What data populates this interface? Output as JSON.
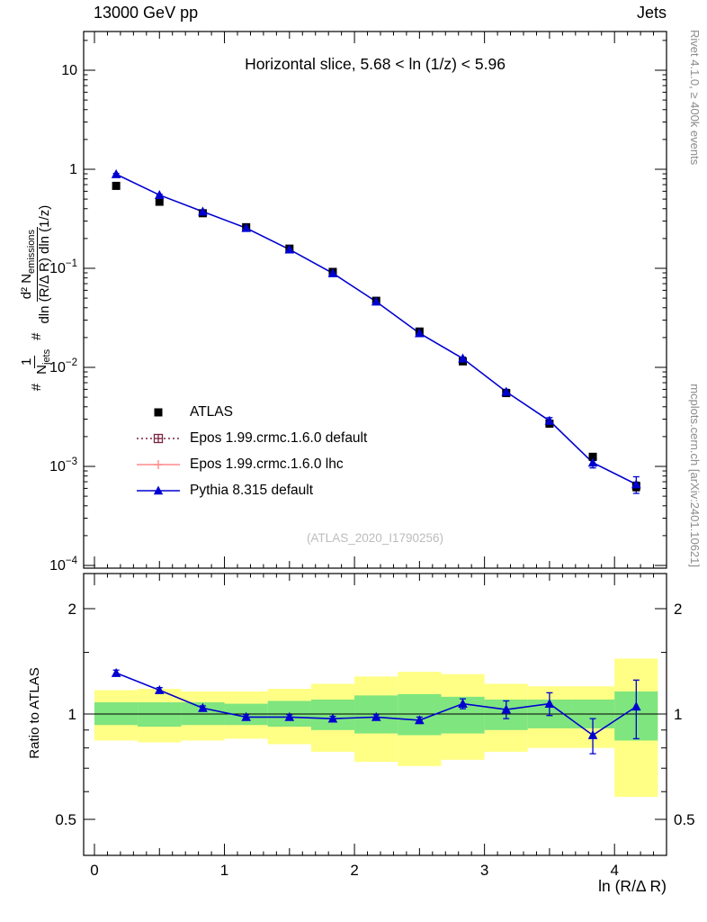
{
  "header": {
    "left": "13000 GeV pp",
    "right": "Jets"
  },
  "panel_title": "Horizontal slice, 5.68 < ln (1/z) < 5.96",
  "watermark": "(ATLAS_2020_I1790256)",
  "side_notes": {
    "top_right": "Rivet 4.1.0, ≥ 400k events",
    "bottom_right": "mcplots.cern.ch [arXiv:2401.10621]"
  },
  "axes": {
    "x_label": "ln (R/Δ R)",
    "ratio_label": "Ratio to ATLAS",
    "y_label_parts": {
      "hash1": "#",
      "f1_num": "1",
      "f1_den_main": "N",
      "f1_den_sub": "jets",
      "hash2": "#",
      "f2_num_main": "d² N",
      "f2_num_sub": "emissions",
      "f2_den": "dln (R/Δ R) dln (1/z)"
    }
  },
  "legend": {
    "items": [
      {
        "label": "ATLAS",
        "marker": "square-filled",
        "color": "#000000",
        "line": "none"
      },
      {
        "label": "Epos 1.99.crmc.1.6.0 default",
        "marker": "square-plus",
        "color": "#7b2440",
        "line": "dotted"
      },
      {
        "label": "Epos 1.99.crmc.1.6.0 lhc",
        "marker": "plus",
        "color": "#ff8a8a",
        "line": "solid"
      },
      {
        "label": "Pythia 8.315 default",
        "marker": "triangle-filled",
        "color": "#0000d0",
        "line": "solid"
      }
    ]
  },
  "chart_data": {
    "type": "line",
    "title": "Horizontal slice, 5.68 < ln (1/z) < 5.96",
    "xlabel": "ln (R/Δ R)",
    "ylabel": "1/N_jets d²N_emissions / dln(R/ΔR) dln(1/z)",
    "ratio_ylabel": "Ratio to ATLAS",
    "xlim": [
      -0.083,
      4.4
    ],
    "ylim_main": [
      0.0001,
      24
    ],
    "ylim_ratio": [
      0.394,
      2.52
    ],
    "x_ticks": [
      0,
      1,
      2,
      3,
      4
    ],
    "y_tick_exponents": [
      1,
      0,
      -1,
      -2,
      -3,
      -4
    ],
    "ratio_ticks": [
      0.5,
      1,
      2
    ],
    "ratio_minor_ticks": [
      0.6,
      0.7,
      0.8,
      0.9,
      1.5
    ],
    "reference_line": 1,
    "x": [
      0.167,
      0.5,
      0.833,
      1.167,
      1.5,
      1.833,
      2.167,
      2.5,
      2.833,
      3.167,
      3.5,
      3.833,
      4.167
    ],
    "series": [
      {
        "name": "ATLAS",
        "marker": "square-filled",
        "color": "#000000",
        "values": [
          0.68,
          0.47,
          0.36,
          0.26,
          0.158,
          0.092,
          0.047,
          0.023,
          0.0115,
          0.0055,
          0.0027,
          0.00125,
          0.00063
        ],
        "yerr_frac": [
          0.03,
          0.03,
          0.03,
          0.03,
          0.03,
          0.03,
          0.03,
          0.03,
          0.035,
          0.04,
          0.05,
          0.08,
          0.1
        ]
      },
      {
        "name": "Pythia 8.315 default",
        "marker": "triangle-filled",
        "color": "#0000d0",
        "values": [
          0.891,
          0.55,
          0.374,
          0.255,
          0.155,
          0.0892,
          0.0461,
          0.0221,
          0.0123,
          0.00567,
          0.00289,
          0.00109,
          0.00066
        ],
        "ratio": [
          1.31,
          1.17,
          1.04,
          0.98,
          0.98,
          0.97,
          0.98,
          0.96,
          1.07,
          1.03,
          1.07,
          0.87,
          1.05
        ],
        "ratio_err": [
          0.025,
          0.02,
          0.015,
          0.015,
          0.015,
          0.015,
          0.015,
          0.02,
          0.035,
          0.06,
          0.08,
          0.1,
          0.2
        ]
      }
    ],
    "legend_only_series": [
      {
        "name": "Epos 1.99.crmc.1.6.0 default",
        "marker": "square-plus",
        "color": "#7b2440",
        "line": "dotted"
      },
      {
        "name": "Epos 1.99.crmc.1.6.0 lhc",
        "marker": "plus",
        "color": "#ff8a8a",
        "line": "solid"
      }
    ],
    "ratio_bands": {
      "yellow_color": "#ffff85",
      "green_color": "#7fe57f",
      "bin_edges": [
        0,
        0.333,
        0.667,
        1.0,
        1.333,
        1.667,
        2.0,
        2.333,
        2.667,
        3.0,
        3.333,
        3.667,
        4.0,
        4.333
      ],
      "yellow_lo": [
        0.84,
        0.83,
        0.84,
        0.85,
        0.82,
        0.78,
        0.73,
        0.71,
        0.74,
        0.78,
        0.8,
        0.8,
        0.58
      ],
      "yellow_hi": [
        1.17,
        1.18,
        1.16,
        1.16,
        1.18,
        1.22,
        1.28,
        1.32,
        1.3,
        1.22,
        1.2,
        1.2,
        1.44
      ],
      "green_lo": [
        0.93,
        0.92,
        0.93,
        0.93,
        0.92,
        0.9,
        0.88,
        0.87,
        0.88,
        0.9,
        0.91,
        0.91,
        0.84
      ],
      "green_hi": [
        1.08,
        1.08,
        1.08,
        1.07,
        1.09,
        1.1,
        1.13,
        1.14,
        1.12,
        1.1,
        1.1,
        1.1,
        1.16
      ]
    }
  }
}
